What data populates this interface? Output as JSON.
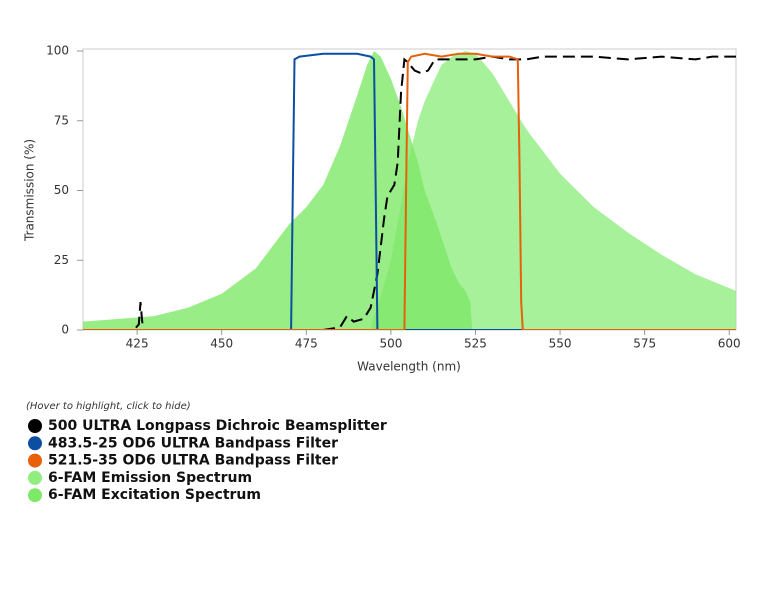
{
  "chart_data": {
    "type": "line",
    "x_label": "Wavelength (nm)",
    "y_label": "Transmission (%)",
    "xlim": [
      409,
      602
    ],
    "ylim": [
      0,
      100
    ],
    "xticks": [
      425,
      450,
      475,
      500,
      525,
      550,
      575,
      600
    ],
    "yticks": [
      0,
      25,
      50,
      75,
      100
    ],
    "grid": false,
    "legend_note": "(Hover to highlight, click to hide)",
    "series": [
      {
        "name": "500 ULTRA Longpass Dichroic Beamsplitter",
        "color": "#000000",
        "style": "dashed",
        "x": [
          409,
          424,
          425.5,
          426,
          426.5,
          427,
          428,
          460,
          480,
          485,
          487,
          489,
          492,
          494,
          496,
          498,
          499,
          500,
          501,
          502,
          503,
          504,
          505,
          507,
          509,
          511,
          513,
          516,
          520,
          525,
          530,
          535,
          540,
          545,
          550,
          560,
          570,
          580,
          590,
          595,
          602
        ],
        "values": [
          0,
          0,
          2,
          10,
          3,
          0,
          0,
          0,
          0,
          1,
          5,
          3,
          4,
          8,
          20,
          40,
          48,
          50,
          52,
          60,
          85,
          97,
          96,
          93,
          92,
          93,
          97,
          97,
          97,
          97,
          98,
          97,
          97,
          98,
          98,
          98,
          97,
          98,
          97,
          98,
          98
        ]
      },
      {
        "name": "483.5-25 OD6 ULTRA Bandpass Filter",
        "color": "#0b4ea2",
        "style": "solid",
        "x": [
          409,
          470.5,
          471,
          471.5,
          473,
          480,
          490,
          494,
          495,
          495.5,
          496,
          602
        ],
        "values": [
          0,
          0,
          50,
          97,
          98,
          99,
          99,
          98,
          97,
          50,
          0,
          0
        ]
      },
      {
        "name": "521.5-35 OD6 ULTRA Bandpass Filter",
        "color": "#e8600a",
        "style": "solid",
        "x": [
          409,
          504,
          504.5,
          505,
          506,
          510,
          515,
          520,
          525,
          530,
          535,
          537.5,
          538,
          538.5,
          539,
          602
        ],
        "values": [
          0,
          0,
          50,
          96,
          98,
          99,
          98,
          99,
          99,
          98,
          98,
          97,
          60,
          10,
          0,
          0
        ]
      },
      {
        "name": "6-FAM Emission Spectrum",
        "color": "#90ee80",
        "style": "area",
        "x": [
          494,
          495,
          497,
          500,
          503,
          505,
          508,
          510,
          513,
          515,
          518,
          520,
          522,
          525,
          530,
          535,
          540,
          545,
          550,
          560,
          570,
          580,
          590,
          602
        ],
        "values": [
          0,
          5,
          12,
          25,
          45,
          60,
          75,
          82,
          90,
          95,
          98,
          99,
          100,
          99,
          92,
          82,
          72,
          64,
          56,
          44,
          35,
          27,
          20,
          14
        ]
      },
      {
        "name": "6-FAM Excitation Spectrum",
        "color": "#7ee868",
        "style": "area",
        "x": [
          409,
          420,
          430,
          440,
          450,
          460,
          465,
          470,
          475,
          480,
          485,
          490,
          493,
          495,
          497,
          500,
          503,
          505,
          508,
          510,
          513,
          515,
          518,
          520,
          522,
          523.5,
          524
        ],
        "values": [
          3,
          4,
          5,
          8,
          13,
          22,
          30,
          38,
          44,
          52,
          66,
          84,
          95,
          100,
          98,
          90,
          80,
          72,
          60,
          50,
          40,
          33,
          22,
          17,
          14,
          10,
          0
        ]
      }
    ]
  }
}
